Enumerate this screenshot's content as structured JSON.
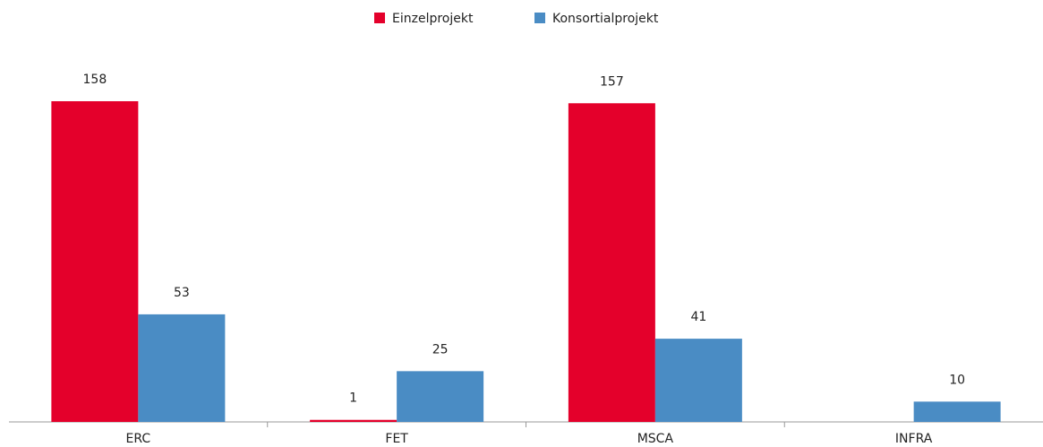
{
  "chart_data": {
    "type": "bar",
    "categories": [
      "ERC",
      "FET",
      "MSCA",
      "INFRA"
    ],
    "series": [
      {
        "name": "Einzelprojekt",
        "color": "#e4002b",
        "values": [
          158,
          1,
          157,
          null
        ]
      },
      {
        "name": "Konsortialprojekt",
        "color": "#4a8cc4",
        "values": [
          53,
          25,
          41,
          10
        ]
      }
    ],
    "legend": "top"
  }
}
